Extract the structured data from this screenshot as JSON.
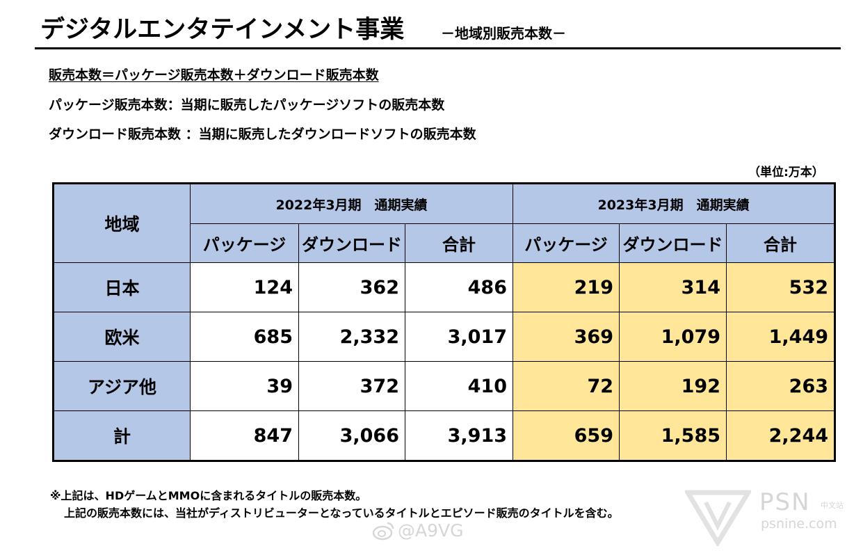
{
  "header": {
    "title": "デジタルエンタテインメント事業",
    "subtitle": "－地域別販売本数－"
  },
  "definitions": {
    "line1": "販売本数＝パッケージ販売本数＋ダウンロード販売本数",
    "line2": "パッケージ販売本数：当期に販売したパッケージソフトの販売本数",
    "line3": "ダウンロード販売本数 ：当期に販売したダウンロードソフトの販売本数"
  },
  "unit": "（単位:万本）",
  "table": {
    "region_header": "地域",
    "period_2022": "2022年3月期　通期実績",
    "period_2023": "2023年3月期　通期実績",
    "col_package": "パッケージ",
    "col_download": "ダウンロード",
    "col_total": "合計",
    "rows": [
      {
        "region": "日本",
        "v": [
          "124",
          "362",
          "486",
          "219",
          "314",
          "532"
        ]
      },
      {
        "region": "欧米",
        "v": [
          "685",
          "2,332",
          "3,017",
          "369",
          "1,079",
          "1,449"
        ]
      },
      {
        "region": "アジア他",
        "v": [
          "39",
          "372",
          "410",
          "72",
          "192",
          "263"
        ]
      },
      {
        "region": "計",
        "v": [
          "847",
          "3,066",
          "3,913",
          "659",
          "1,585",
          "2,244"
        ]
      }
    ]
  },
  "notes": {
    "line1": "※上記は、HDゲームとMMOに含まれるタイトルの販売本数。",
    "line2": "上記の販売本数には、当社がディストリビューターとなっているタイトルとエピソード販売のタイトルを含む。"
  },
  "watermarks": {
    "weibo": "@A9VG",
    "psn": "PSN",
    "psn_cn": "中文站",
    "psn_url": "psnine.com"
  },
  "colors": {
    "header_bg": "#b4c7e7",
    "highlight_2023": "#ffe699"
  }
}
